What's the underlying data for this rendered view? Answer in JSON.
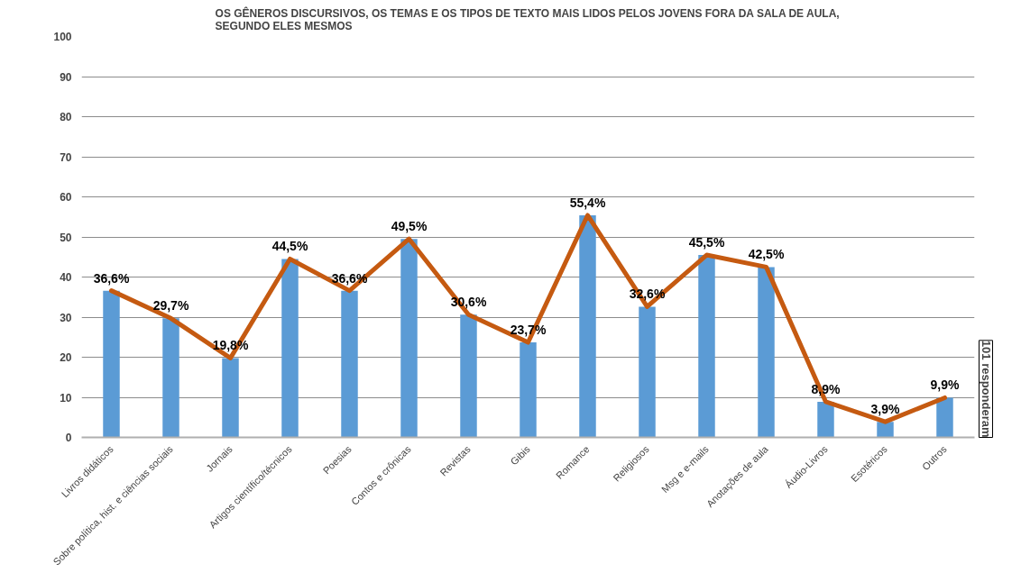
{
  "chart_data": {
    "type": "bar",
    "title": "OS GÊNEROS DISCURSIVOS, OS TEMAS E OS TIPOS DE TEXTO MAIS LIDOS PELOS JOVENS FORA DA SALA DE AULA,\nSEGUNDO ELES MESMOS",
    "categories": [
      "Livros didáticos",
      "Sobre política, hist. e ciências sociais",
      "Jornais",
      "Artigos científico/técnicos",
      "Poesias",
      "Contos e crônicas",
      "Revistas",
      "Gibis",
      "Romance",
      "Religiosos",
      "Msg e e-mails",
      "Anotações de aula",
      "Áudio-Livros",
      "Esotéricos",
      "Outros"
    ],
    "series": [
      {
        "color": "#5b9bd5",
        "values": [
          36.6,
          29.7,
          19.8,
          44.5,
          36.6,
          49.5,
          30.6,
          23.7,
          55.4,
          32.6,
          45.5,
          42.5,
          8.9,
          3.9,
          9.9
        ]
      },
      {
        "type": "line",
        "color": "#c55a11",
        "values": [
          36.6,
          29.7,
          19.8,
          44.5,
          36.6,
          49.5,
          30.6,
          23.7,
          55.4,
          32.6,
          45.5,
          42.5,
          8.9,
          3.9,
          9.9
        ]
      }
    ],
    "value_labels": [
      "36,6%",
      "29,7%",
      "19,8%",
      "44,5%",
      "36,6%",
      "49,5%",
      "30,6%",
      "23,7%",
      "55,4%",
      "32,6%",
      "45,5%",
      "42,5%",
      "8,9%",
      "3,9%",
      "9,9%"
    ],
    "ylim": [
      0,
      100
    ],
    "yticks": [
      0,
      10,
      20,
      30,
      40,
      50,
      60,
      70,
      80,
      90,
      100
    ],
    "grid": "y",
    "annotations": [
      "101 responderam"
    ]
  }
}
